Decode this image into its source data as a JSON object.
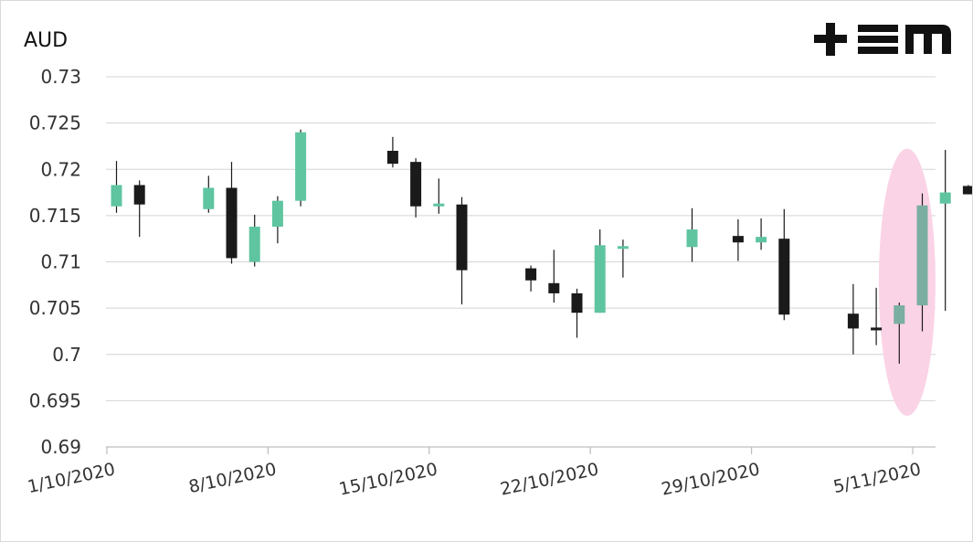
{
  "chart_data": {
    "type": "candlestick",
    "ylabel": "AUD",
    "ylim": [
      0.69,
      0.73
    ],
    "yticks": [
      {
        "value": 0.69,
        "label": "0.69"
      },
      {
        "value": 0.695,
        "label": "0.695"
      },
      {
        "value": 0.7,
        "label": "0.7"
      },
      {
        "value": 0.705,
        "label": "0.705"
      },
      {
        "value": 0.71,
        "label": "0.71"
      },
      {
        "value": 0.715,
        "label": "0.715"
      },
      {
        "value": 0.72,
        "label": "0.72"
      },
      {
        "value": 0.725,
        "label": "0.725"
      },
      {
        "value": 0.73,
        "label": "0.73"
      }
    ],
    "xlim": [
      "2020-10-01",
      "2020-11-06"
    ],
    "xticks": [
      {
        "date": "2020-10-01",
        "label": "1/10/2020"
      },
      {
        "date": "2020-10-08",
        "label": "8/10/2020"
      },
      {
        "date": "2020-10-15",
        "label": "15/10/2020"
      },
      {
        "date": "2020-10-22",
        "label": "22/10/2020"
      },
      {
        "date": "2020-10-29",
        "label": "29/10/2020"
      },
      {
        "date": "2020-11-05",
        "label": "5/11/2020"
      }
    ],
    "grid": true,
    "colors": {
      "up": "#5fc5a0",
      "down": "#1a1a1a",
      "highlight_up": "#7aaea0",
      "highlight": "#fbd3e6"
    },
    "highlight": {
      "dates": [
        "2020-11-04",
        "2020-11-05"
      ],
      "shape": "ellipse"
    },
    "candles": [
      {
        "date": "2020-10-01",
        "open": 0.716,
        "high": 0.7209,
        "low": 0.7153,
        "close": 0.7183
      },
      {
        "date": "2020-10-02",
        "open": 0.7183,
        "high": 0.7188,
        "low": 0.7127,
        "close": 0.7162
      },
      {
        "date": "2020-10-05",
        "open": 0.7157,
        "high": 0.7193,
        "low": 0.7153,
        "close": 0.718
      },
      {
        "date": "2020-10-06",
        "open": 0.718,
        "high": 0.7208,
        "low": 0.7098,
        "close": 0.7104
      },
      {
        "date": "2020-10-07",
        "open": 0.71,
        "high": 0.7151,
        "low": 0.7095,
        "close": 0.7138
      },
      {
        "date": "2020-10-08",
        "open": 0.7138,
        "high": 0.7171,
        "low": 0.712,
        "close": 0.7166
      },
      {
        "date": "2020-10-09",
        "open": 0.7166,
        "high": 0.7243,
        "low": 0.716,
        "close": 0.724
      },
      {
        "date": "2020-10-13",
        "open": 0.722,
        "high": 0.7235,
        "low": 0.7202,
        "close": 0.7206
      },
      {
        "date": "2020-10-14",
        "open": 0.7208,
        "high": 0.7212,
        "low": 0.7148,
        "close": 0.716
      },
      {
        "date": "2020-10-15",
        "open": 0.716,
        "high": 0.719,
        "low": 0.7152,
        "close": 0.7163
      },
      {
        "date": "2020-10-16",
        "open": 0.7162,
        "high": 0.717,
        "low": 0.7054,
        "close": 0.7091
      },
      {
        "date": "2020-10-19",
        "open": 0.7093,
        "high": 0.7096,
        "low": 0.7068,
        "close": 0.708
      },
      {
        "date": "2020-10-20",
        "open": 0.7077,
        "high": 0.7113,
        "low": 0.7056,
        "close": 0.7066
      },
      {
        "date": "2020-10-21",
        "open": 0.7066,
        "high": 0.7071,
        "low": 0.7018,
        "close": 0.7045
      },
      {
        "date": "2020-10-22",
        "open": 0.7045,
        "high": 0.7135,
        "low": 0.7045,
        "close": 0.7118
      },
      {
        "date": "2020-10-23",
        "open": 0.7115,
        "high": 0.7124,
        "low": 0.7083,
        "close": 0.7117
      },
      {
        "date": "2020-10-26",
        "open": 0.7116,
        "high": 0.7158,
        "low": 0.71,
        "close": 0.7135
      },
      {
        "date": "2020-10-28",
        "open": 0.7128,
        "high": 0.7146,
        "low": 0.7101,
        "close": 0.7121
      },
      {
        "date": "2020-10-29",
        "open": 0.7121,
        "high": 0.7147,
        "low": 0.7113,
        "close": 0.7127
      },
      {
        "date": "2020-10-30",
        "open": 0.7125,
        "high": 0.7157,
        "low": 0.7037,
        "close": 0.7043
      },
      {
        "date": "2020-11-02",
        "open": 0.7044,
        "high": 0.7076,
        "low": 0.7,
        "close": 0.7028
      },
      {
        "date": "2020-11-03",
        "open": 0.7029,
        "high": 0.7072,
        "low": 0.701,
        "close": 0.7026
      },
      {
        "date": "2020-11-04",
        "open": 0.7033,
        "high": 0.7056,
        "low": 0.699,
        "close": 0.7053
      },
      {
        "date": "2020-11-05",
        "open": 0.7053,
        "high": 0.7174,
        "low": 0.7025,
        "close": 0.7161
      },
      {
        "date": "2020-11-06",
        "open": 0.7163,
        "high": 0.7221,
        "low": 0.7047,
        "close": 0.7175
      },
      {
        "date": "2020-11-07",
        "open": 0.7182,
        "high": 0.7183,
        "low": 0.7173,
        "close": 0.7173
      }
    ]
  },
  "logo": {
    "text": "+EM",
    "color": "#111111"
  }
}
